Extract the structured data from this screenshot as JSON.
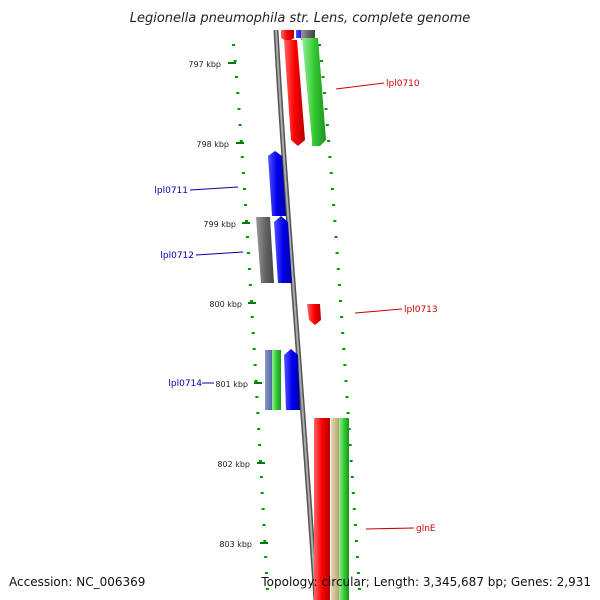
{
  "title": "Legionella pneumophila str. Lens, complete genome",
  "kbp_labels": [
    "797 kbp",
    "798 kbp",
    "799 kbp",
    "800 kbp",
    "801 kbp",
    "802 kbp",
    "803 kbp"
  ],
  "genes": [
    {
      "label": "lpl0710",
      "color": "#cc0000"
    },
    {
      "label": "lpl0711",
      "color": "#0000aa"
    },
    {
      "label": "lpl0712",
      "color": "#0000aa"
    },
    {
      "label": "lpl0713",
      "color": "#cc0000"
    },
    {
      "label": "lpl0714",
      "color": "#0000aa"
    },
    {
      "label": "glnE",
      "color": "#cc0000"
    }
  ],
  "footer": {
    "accession": "Accession: NC_006369",
    "topology": "Topology: circular; Length: 3,345,687 bp; Genes: 2,931"
  },
  "colors": {
    "forward_cds": "#ff0000",
    "reverse_cds": "#0000ee",
    "ruler_ticks": "#009900",
    "feature_green": "#33cc33",
    "backbone": "#888888"
  }
}
